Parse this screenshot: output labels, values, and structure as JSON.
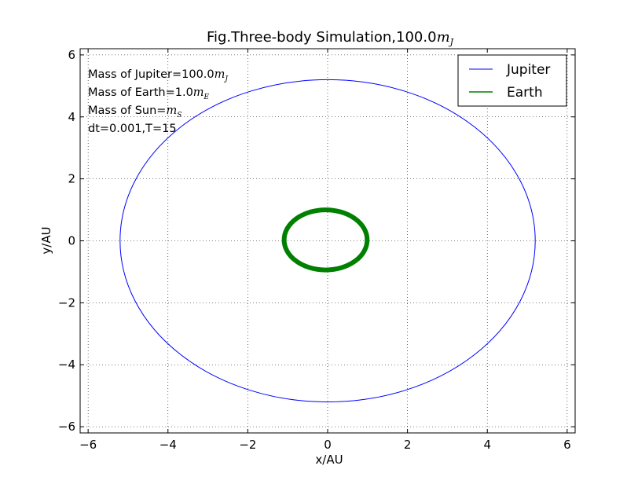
{
  "chart_data": {
    "type": "line",
    "title": "Fig.Three-body Simulation,100.0m_J",
    "title_parts": {
      "text": "Fig.Three-body Simulation,100.0",
      "math_base": "m",
      "math_sub": "J"
    },
    "xlabel": "x/AU",
    "ylabel": "y/AU",
    "xlim": [
      -6.2,
      6.2
    ],
    "ylim": [
      -6.2,
      6.2
    ],
    "xticks": [
      -6,
      -4,
      -2,
      0,
      2,
      4,
      6
    ],
    "yticks": [
      -6,
      -4,
      -2,
      0,
      2,
      4,
      6
    ],
    "xtick_labels": [
      "−6",
      "−4",
      "−2",
      "0",
      "2",
      "4",
      "6"
    ],
    "ytick_labels": [
      "−6",
      "−4",
      "−2",
      "0",
      "2",
      "4",
      "6"
    ],
    "grid": true,
    "legend_position": "top-right",
    "series": [
      {
        "name": "Jupiter",
        "color": "#0000ff",
        "shape": "ellipse",
        "cx": 0.0,
        "cy": 0.0,
        "rx": 5.2,
        "ry": 5.2,
        "line_width": 1
      },
      {
        "name": "Earth",
        "color": "#008000",
        "shape": "ellipse",
        "cx": -0.05,
        "cy": 0.03,
        "rx": 1.04,
        "ry": 0.97,
        "line_width": 6
      }
    ],
    "annotations": [
      {
        "text": "Mass of Jupiter=100.0",
        "math_base": "m",
        "math_sub": "J"
      },
      {
        "text": "Mass of Earth=1.0",
        "math_base": "m",
        "math_sub": "E"
      },
      {
        "text": "Mass of Sun=",
        "math_base": "m",
        "math_sub": "S"
      },
      {
        "text": "dt=0.001,T=15",
        "math_base": "",
        "math_sub": ""
      }
    ]
  }
}
